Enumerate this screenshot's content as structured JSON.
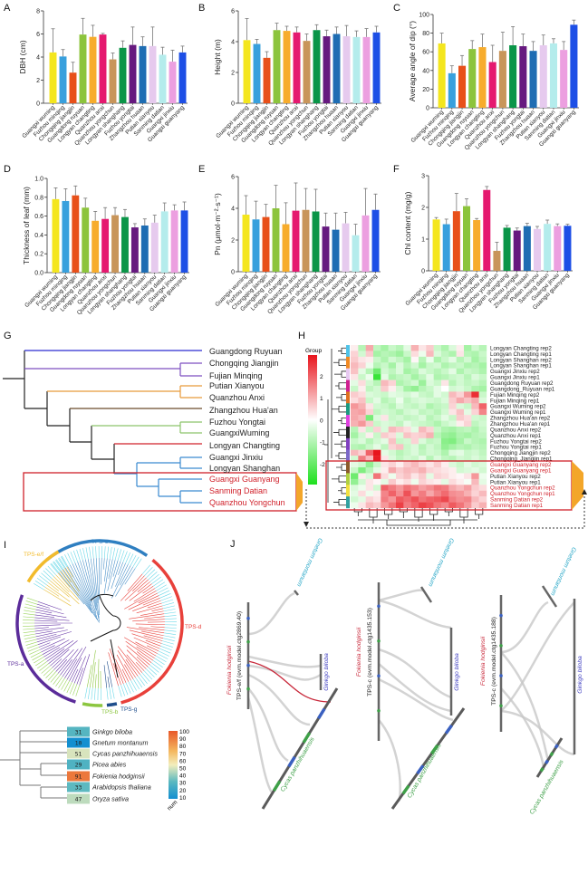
{
  "panel_letters": {
    "A": "A",
    "B": "B",
    "C": "C",
    "D": "D",
    "E": "E",
    "F": "F",
    "G": "G",
    "H": "H",
    "I": "I",
    "J": "J"
  },
  "categories": [
    "Guangxi wuming",
    "Fuzhou minqing",
    "Chongqing jiangjin",
    "Guangdong ruyuan",
    "Longyan changting",
    "Quanzhou anxi",
    "Quanzhou yongchun",
    "Longyan shanghang",
    "Fuzhou yongtai",
    "Zhangzhou huaan",
    "Putian xianyou",
    "Sanming datian",
    "Guangxi jinxiu",
    "Guangxi guanyang"
  ],
  "bar_colors": [
    "#f4e61e",
    "#38a0dd",
    "#e8501a",
    "#8cc43c",
    "#f7ac2c",
    "#e5196f",
    "#c8955a",
    "#0a9548",
    "#66197f",
    "#1e6db3",
    "#e6caee",
    "#b4ecec",
    "#ec9fe0",
    "#1d4fe6"
  ],
  "chart_data": [
    {
      "type": "bar",
      "panel": "A",
      "ylabel": "DBH (cm)",
      "ylim": [
        0,
        8
      ],
      "yticks": [
        0,
        2,
        4,
        6,
        8
      ],
      "values": [
        4.4,
        4.05,
        2.65,
        5.95,
        5.75,
        5.95,
        3.8,
        4.8,
        5.05,
        4.95,
        4.95,
        4.2,
        3.6,
        4.4
      ],
      "errors": [
        2.05,
        0.6,
        0.9,
        1.4,
        1.0,
        0.1,
        0.55,
        0.6,
        1.55,
        0.8,
        1.65,
        0.65,
        1.0,
        0.55
      ]
    },
    {
      "type": "bar",
      "panel": "B",
      "ylabel": "Height (m)",
      "ylim": [
        0,
        6
      ],
      "yticks": [
        0,
        2,
        4,
        6
      ],
      "values": [
        4.1,
        3.85,
        2.95,
        4.75,
        4.7,
        4.6,
        4.05,
        4.75,
        4.35,
        4.5,
        4.35,
        4.3,
        4.3,
        4.6
      ],
      "errors": [
        1.4,
        0.3,
        0.4,
        0.45,
        0.3,
        0.35,
        0.45,
        0.35,
        0.4,
        0.45,
        0.7,
        0.4,
        0.55,
        0.4
      ]
    },
    {
      "type": "bar",
      "panel": "C",
      "ylabel": "Average angle of dip (°)",
      "ylim": [
        0,
        100
      ],
      "yticks": [
        0,
        20,
        40,
        60,
        80,
        100
      ],
      "values": [
        69,
        37,
        45,
        63,
        65,
        49,
        61,
        67,
        66,
        61,
        67,
        69,
        62,
        89
      ],
      "errors": [
        11,
        8,
        11,
        9,
        14,
        18,
        20,
        20,
        13,
        10,
        11,
        5,
        9,
        5
      ]
    },
    {
      "type": "bar",
      "panel": "D",
      "ylabel": "Thickness of leaf (mm)",
      "ylim": [
        0,
        1.0
      ],
      "yticks": [
        "0.0",
        "0.2",
        "0.4",
        "0.6",
        "0.8",
        "1.0"
      ],
      "values": [
        0.78,
        0.76,
        0.82,
        0.69,
        0.55,
        0.57,
        0.61,
        0.59,
        0.48,
        0.5,
        0.53,
        0.65,
        0.66,
        0.66
      ],
      "errors": [
        0.12,
        0.13,
        0.1,
        0.1,
        0.1,
        0.12,
        0.08,
        0.08,
        0.04,
        0.07,
        0.08,
        0.09,
        0.06,
        0.09
      ]
    },
    {
      "type": "bar",
      "panel": "E",
      "ylabel": "Pn (μmol·m⁻²·s⁻¹)",
      "ylim": [
        0,
        6
      ],
      "yticks": [
        0,
        2,
        4,
        6
      ],
      "values": [
        3.6,
        3.3,
        3.45,
        4.0,
        3.0,
        3.85,
        3.9,
        3.8,
        2.85,
        2.65,
        3.05,
        2.3,
        3.55,
        3.9
      ],
      "errors": [
        1.2,
        1.15,
        0.8,
        1.45,
        1.35,
        1.75,
        1.35,
        1.4,
        0.85,
        1.05,
        0.7,
        0.7,
        1.7,
        1.0
      ]
    },
    {
      "type": "bar",
      "panel": "F",
      "ylabel": "Chl content (mg/g)",
      "ylim": [
        0,
        3
      ],
      "yticks": [
        0,
        1,
        2,
        3
      ],
      "values": [
        1.62,
        1.47,
        1.88,
        2.04,
        1.6,
        2.55,
        0.63,
        1.36,
        1.27,
        1.41,
        1.32,
        1.48,
        1.41,
        1.42
      ],
      "errors": [
        0.06,
        0.16,
        0.56,
        0.23,
        0.05,
        0.11,
        0.27,
        0.07,
        0.08,
        0.09,
        0.08,
        0.12,
        0.07,
        0.05
      ]
    },
    {
      "type": "heatmap",
      "panel": "H",
      "legend_title": "Group",
      "legend_ticks": [
        "2",
        "1",
        "0",
        "-1",
        "-2"
      ],
      "range": [
        -2.5,
        2.7
      ],
      "rows": [
        "Longyan Changting rep2",
        "Longyan Changting rep1",
        "Longyan Shanghan rep2",
        "Longyan Shanghan rep1",
        "Guangxi Jinxiu rep2",
        "Guangxi Jinxiu rep1",
        "Guangdong Ruyuan rep2",
        "Guangdong_Ruyuan rep1",
        "Fujian Minqing rep2",
        "Fujian Minqing rep1",
        "Guangxi Wuming rep2",
        "Guangxi Wuming rep1",
        "Zhangzhou Hua'an rep2",
        "Zhangzhou Hua'an rep1",
        "Quanzhou Anxi rep2",
        "Quanzhou Anxi rep1",
        "Fuzhou Yongtai rep2",
        "Fuzhou Yongtai rep1",
        "Chongqing Jiangjin rep2",
        "Chongqing_Jiangjin rep1",
        "Guangxi Guanyang rep2",
        "Guangxi Guanyang rep1",
        "Putian  Xianyou rep2",
        "Putian  Xianyou rep1",
        "Quanzhou Yongchun rep2",
        "Quanzhou Yongchun rep1",
        "Sanming Datian rep2",
        "Sanming Datian rep1"
      ],
      "highlighted_rows": [
        20,
        21,
        24,
        25,
        26,
        27
      ],
      "group_colors": [
        "#4fc3e8",
        "#4fc3e8",
        "#f08a24",
        "#f08a24",
        "#e6c8f0",
        "#e6c8f0",
        "#d02090",
        "#d02090",
        "#e07020",
        "#e07020",
        "#1a9a80",
        "#1a9a80",
        "#e040e0",
        "#e040e0",
        "#222222",
        "#222222",
        "#8040c0",
        "#8040c0",
        "#7b68c8",
        "#7b68c8",
        "#8b5a2b",
        "#8b5a2b",
        "#b0d040",
        "#b0d040",
        "#f0e040",
        "#f0e040",
        "#30a0a0",
        "#30a0a0"
      ],
      "matrix": [
        [
          0.2,
          -0.8,
          1.0,
          -0.7,
          -1.0,
          -0.6,
          -0.8,
          -0.3,
          0.9,
          0.3,
          0.6,
          -0.6,
          -0.9,
          -0.4,
          0.2,
          -1.0,
          -0.5,
          -0.8
        ],
        [
          0.5,
          -0.5,
          0.6,
          -1.0,
          -0.8,
          -0.9,
          -1.1,
          -0.6,
          0.4,
          -0.2,
          0.8,
          -0.4,
          -0.7,
          -0.9,
          0.3,
          -0.8,
          -0.9,
          -0.6
        ],
        [
          0.6,
          0.3,
          0.2,
          -0.6,
          -0.9,
          -0.5,
          -0.7,
          -1.0,
          0.1,
          -0.8,
          -0.2,
          -0.9,
          -0.6,
          -0.3,
          -0.8,
          -0.5,
          -1.0,
          -0.7
        ],
        [
          0.8,
          0.5,
          -0.2,
          -0.8,
          -0.6,
          -1.0,
          -0.4,
          -0.8,
          -0.5,
          -1.0,
          -0.6,
          -0.5,
          -0.9,
          -0.7,
          -0.6,
          -0.9,
          -0.8,
          -1.0
        ],
        [
          0.7,
          -0.3,
          -0.8,
          -1.6,
          -0.5,
          -0.7,
          -0.4,
          -1.0,
          -0.8,
          -0.4,
          -0.6,
          -0.8,
          -0.6,
          -0.3,
          -0.9,
          -0.6,
          -0.7,
          -0.9
        ],
        [
          0.3,
          -0.6,
          -0.2,
          -2.2,
          -0.3,
          -0.9,
          -0.7,
          -0.6,
          -1.0,
          -0.7,
          -0.3,
          -0.9,
          -0.8,
          -0.6,
          -0.5,
          -0.8,
          -0.4,
          -0.6
        ],
        [
          -0.3,
          0.4,
          -0.5,
          -0.8,
          0.8,
          0.5,
          -0.9,
          -0.7,
          -0.5,
          -1.1,
          -0.4,
          -0.6,
          0.3,
          -0.8,
          -0.5,
          -0.7,
          -0.6,
          -0.8
        ],
        [
          -0.6,
          0.2,
          -0.7,
          -0.5,
          0.6,
          0.2,
          -0.5,
          -1.0,
          -1.2,
          -0.8,
          -0.6,
          -0.3,
          0.0,
          -0.5,
          -0.4,
          -0.6,
          -0.9,
          -1.0
        ],
        [
          0.6,
          0.4,
          -0.4,
          -0.5,
          -0.6,
          -0.3,
          -0.4,
          -0.5,
          -0.3,
          -0.6,
          -0.7,
          -0.3,
          -0.5,
          0.8,
          0.5,
          1.2,
          2.4,
          -0.6
        ],
        [
          0.4,
          0.7,
          -0.6,
          -0.3,
          -0.8,
          -0.6,
          -0.2,
          -0.7,
          -0.5,
          -0.4,
          -0.5,
          -0.6,
          -0.4,
          0.6,
          1.0,
          0.7,
          1.0,
          -0.4
        ],
        [
          1.2,
          0.9,
          0.3,
          -0.5,
          -0.6,
          -0.8,
          -0.4,
          -0.6,
          -0.7,
          -0.5,
          -0.9,
          -0.7,
          -0.6,
          0.5,
          -0.4,
          -0.6,
          0.8,
          1.8
        ],
        [
          1.0,
          1.1,
          0.5,
          -0.7,
          -0.5,
          -0.6,
          -0.8,
          -0.5,
          -0.4,
          -0.7,
          -0.6,
          -0.8,
          -0.5,
          0.3,
          0.7,
          -0.3,
          0.5,
          1.4
        ],
        [
          1.0,
          0.8,
          -1.5,
          -0.4,
          0.3,
          -0.6,
          -0.5,
          -0.7,
          -0.6,
          -0.4,
          -0.8,
          -0.6,
          -0.3,
          -0.6,
          0.6,
          0.4,
          -0.5,
          -0.6
        ],
        [
          0.9,
          1.2,
          0.6,
          -0.6,
          -0.4,
          -0.5,
          -0.7,
          -0.3,
          -0.5,
          -0.6,
          -0.7,
          -0.9,
          -0.6,
          -0.4,
          0.2,
          0.5,
          -0.7,
          -0.5
        ],
        [
          -0.8,
          0.3,
          -0.6,
          0.5,
          -0.4,
          0.8,
          0.6,
          0.4,
          -0.3,
          0.8,
          0.5,
          -0.6,
          -0.9,
          -1.0,
          -0.8,
          -0.7,
          -0.9,
          -0.6
        ],
        [
          -1.0,
          -0.5,
          0.2,
          -0.6,
          0.6,
          0.4,
          -0.4,
          0.7,
          0.5,
          0.6,
          0.9,
          -0.8,
          -1.1,
          -1.2,
          -0.9,
          -1.0,
          -0.8,
          -0.7
        ],
        [
          -0.6,
          -0.4,
          -0.8,
          -0.5,
          -0.3,
          0.7,
          -0.6,
          -0.5,
          0.5,
          -0.4,
          -0.7,
          -0.6,
          -1.3,
          -1.4,
          -1.0,
          -0.6,
          -0.8,
          -0.9
        ],
        [
          -0.8,
          -0.9,
          -0.6,
          -0.3,
          -0.7,
          0.5,
          0.7,
          -0.6,
          -0.4,
          -0.8,
          -0.5,
          -0.7,
          -1.2,
          -1.0,
          -0.8,
          -0.9,
          -0.7,
          -0.8
        ],
        [
          0.8,
          0.5,
          1.8,
          2.8,
          -0.3,
          -0.5,
          -0.8,
          -0.6,
          -0.4,
          -0.7,
          -0.5,
          -0.6,
          -0.9,
          -0.4,
          -0.3,
          -0.6,
          -0.5,
          -0.7
        ],
        [
          -0.5,
          1.5,
          0.8,
          2.6,
          0.3,
          -0.4,
          -0.7,
          -0.5,
          -0.6,
          -0.3,
          -0.8,
          -0.4,
          -0.7,
          -0.8,
          -0.5,
          -0.6,
          -0.4,
          -0.6
        ],
        [
          -0.3,
          -0.5,
          -1.2,
          -0.6,
          0.3,
          0.5,
          0.2,
          0.6,
          0.8,
          0.5,
          0.3,
          0.6,
          0.2,
          -0.4,
          -0.6,
          -0.3,
          -0.5,
          -0.4
        ],
        [
          -0.6,
          -1.4,
          -0.8,
          -0.3,
          0.2,
          1.0,
          0.6,
          0.8,
          0.7,
          0.9,
          0.5,
          0.4,
          0.3,
          0.2,
          -0.5,
          -0.4,
          -0.3,
          -0.5
        ],
        [
          -1.6,
          0.2,
          -0.4,
          1.6,
          0.4,
          -0.2,
          0.5,
          0.7,
          0.3,
          0.6,
          -0.3,
          0.5,
          0.4,
          0.2,
          0.1,
          0.3,
          1.2,
          -0.2
        ],
        [
          -1.2,
          -0.5,
          0.3,
          0.1,
          -0.3,
          0.6,
          0.2,
          0.4,
          -0.2,
          0.5,
          0.3,
          0.2,
          -0.3,
          0.4,
          0.2,
          -0.1,
          0.8,
          -0.3
        ],
        [
          -0.4,
          -0.2,
          0.3,
          -0.5,
          1.8,
          1.5,
          1.2,
          1.6,
          1.4,
          1.1,
          1.3,
          1.6,
          1.5,
          1.0,
          0.8,
          1.1,
          0.6,
          0.4
        ],
        [
          -0.3,
          0.4,
          -0.2,
          0.2,
          1.4,
          1.8,
          1.3,
          2.0,
          1.2,
          1.5,
          1.0,
          1.4,
          1.7,
          1.3,
          1.2,
          0.9,
          0.5,
          0.8
        ],
        [
          -0.5,
          -0.3,
          0.5,
          0.3,
          1.5,
          1.2,
          1.9,
          1.7,
          2.0,
          1.6,
          1.8,
          1.9,
          2.1,
          1.5,
          1.3,
          1.4,
          0.8,
          0.5
        ],
        [
          -0.2,
          0.3,
          0.8,
          0.6,
          1.2,
          1.6,
          2.2,
          1.5,
          1.8,
          2.2,
          2.0,
          1.6,
          1.4,
          1.9,
          1.6,
          1.2,
          0.6,
          0.9
        ]
      ]
    }
  ],
  "tree_g": {
    "leaves": [
      "Guangdong Ruyuan",
      "Chongqing Jiangjin",
      "Fujian Minqing",
      "Putian Xianyou",
      "Quanzhou Anxi",
      "Zhangzhou Hua'an",
      "Fuzhou Yongtai",
      "GuangxiWuming",
      "Longyan Changting",
      "Guangxi Jinxiu",
      "Longyan Shanghan",
      "Guangxi Guanyang",
      "Sanming Datian",
      "Quanzhou Yongchun"
    ]
  },
  "panel_i": {
    "clades": [
      {
        "label": "TPS-c",
        "color": "#2f7fc1"
      },
      {
        "label": "TPS-d",
        "color": "#e8403a"
      },
      {
        "label": "TPS-g",
        "color": "#1f4e8c"
      },
      {
        "label": "TPS-b",
        "color": "#8cc63f"
      },
      {
        "label": "TPS-a",
        "color": "#5b2c9a"
      },
      {
        "label": "TPS-e/f",
        "color": "#f2bb2c"
      }
    ],
    "species": [
      {
        "name": "Ginkgo biloba",
        "num": 31
      },
      {
        "name": "Gnetum montanum",
        "num": 10
      },
      {
        "name": "Cycas panzhihuaensis",
        "num": 51
      },
      {
        "name": "Picea abies",
        "num": 29
      },
      {
        "name": "Fokienia hodginsii",
        "num": 91
      },
      {
        "name": "Arabidopsis thaliana",
        "num": 33
      },
      {
        "name": "Oryza sativa",
        "num": 47
      }
    ],
    "colorbar_ticks": [
      "100",
      "90",
      "80",
      "70",
      "60",
      "50",
      "40",
      "30",
      "20",
      "10"
    ],
    "colorbar_label": "num"
  },
  "panel_j": {
    "panels": [
      {
        "species_main": "Fokienia hodginsii",
        "gene": "TPS-e/f (evm.model.ctg2869.40)",
        "gnetum": "Gnetum montanum",
        "ginkgo": "Ginkgo biloba",
        "cycas": "Cycas panzhihuaensis"
      },
      {
        "species_main": "Fokienia hodginsii",
        "gene": "TPS-c (evm.model.ctg1435.153)",
        "gnetum": "Gnetum montanum",
        "ginkgo": "Ginkgo biloba",
        "cycas": "Cycas panzhihuaensis"
      },
      {
        "species_main": "Fokienia hodginsii",
        "gene": "TPS-c (evm.model.ctg1435.188)",
        "gnetum": "Gnetum montanum",
        "ginkgo": "Ginkgo biloba",
        "cycas": "Cycas panzhihuaensis"
      }
    ]
  }
}
